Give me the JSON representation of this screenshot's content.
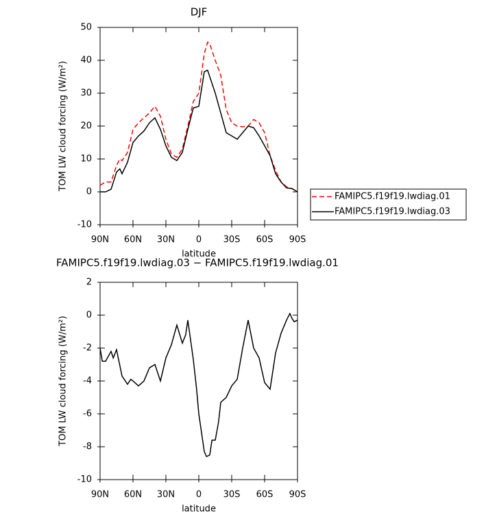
{
  "chart_data": [
    {
      "type": "line",
      "title": "DJF",
      "xlabel": "latitude",
      "ylabel": "TOM LW cloud forcing (W/m²)",
      "x": [
        90,
        85,
        80,
        75,
        72,
        70,
        65,
        60,
        55,
        50,
        45,
        40,
        35,
        30,
        25,
        20,
        15,
        10,
        5,
        0,
        -5,
        -8,
        -10,
        -15,
        -20,
        -25,
        -30,
        -35,
        -40,
        -45,
        -50,
        -55,
        -60,
        -65,
        -70,
        -75,
        -80,
        -85,
        -90
      ],
      "series": [
        {
          "name": "FAMIPC5.f19f19.lwdiag.01",
          "color": "#ff0000",
          "dash": true,
          "values": [
            2,
            3,
            3,
            8,
            10,
            9.5,
            12,
            19,
            21,
            22.5,
            24,
            26,
            23,
            16,
            11.5,
            10.5,
            13,
            20,
            27.5,
            30,
            42,
            45.5,
            45,
            40,
            35.5,
            25,
            21,
            20,
            19.8,
            20,
            22,
            21,
            18,
            11,
            6.5,
            3,
            1.5,
            1,
            0
          ]
        },
        {
          "name": "FAMIPC5.f19f19.lwdiag.03",
          "color": "#000000",
          "dash": false,
          "values": [
            0,
            0,
            0.8,
            6,
            7,
            5.5,
            9,
            15,
            17,
            18.5,
            21,
            22.5,
            19,
            14,
            10.5,
            9.5,
            12,
            19,
            25.5,
            26,
            36.5,
            37,
            35,
            30,
            24,
            18,
            17,
            16,
            18,
            20,
            19.5,
            17,
            14,
            11,
            5.5,
            3,
            1.2,
            1,
            0
          ]
        }
      ],
      "xlim": [
        90,
        -90
      ],
      "xticks": [
        {
          "value": 90,
          "label": "90N"
        },
        {
          "value": 60,
          "label": "60N"
        },
        {
          "value": 30,
          "label": "30N"
        },
        0,
        {
          "value": -30,
          "label": "30S"
        },
        {
          "value": -60,
          "label": "60S"
        },
        {
          "value": -90,
          "label": "90S"
        }
      ],
      "ylim": [
        -10,
        50
      ],
      "yticks": [
        -10,
        0,
        10,
        20,
        30,
        40,
        50
      ],
      "legend": "right"
    },
    {
      "type": "line",
      "title": "FAMIPC5.f19f19.lwdiag.03 − FAMIPC5.f19f19.lwdiag.01",
      "xlabel": "latitude",
      "ylabel": "TOM LW cloud forcing (W/m²)",
      "x": [
        90,
        88,
        85,
        80,
        78,
        75,
        70,
        65,
        62,
        60,
        55,
        50,
        45,
        40,
        35,
        30,
        25,
        20,
        15,
        12,
        10,
        5,
        2,
        0,
        -5,
        -7,
        -10,
        -12,
        -15,
        -18,
        -20,
        -25,
        -30,
        -35,
        -40,
        -45,
        -50,
        -55,
        -60,
        -65,
        -70,
        -75,
        -80,
        -83,
        -85,
        -87,
        -90
      ],
      "color": "#000000",
      "values": [
        -2,
        -2.8,
        -2.8,
        -2.2,
        -2.6,
        -2.1,
        -3.7,
        -4.2,
        -3.9,
        -4.0,
        -4.3,
        -4.0,
        -3.2,
        -3.0,
        -4.0,
        -2.6,
        -1.8,
        -0.6,
        -1.7,
        -1.2,
        -0.3,
        -2.7,
        -4.5,
        -6,
        -8.3,
        -8.6,
        -8.5,
        -7.6,
        -7.6,
        -6.5,
        -5.3,
        -5,
        -4.3,
        -3.9,
        -2,
        -0.3,
        -2.0,
        -2.6,
        -4.1,
        -4.5,
        -2.3,
        -1.1,
        -0.3,
        0.1,
        -0.2,
        -0.4,
        -0.3
      ],
      "xlim": [
        90,
        -90
      ],
      "xticks": [
        {
          "value": 90,
          "label": "90N"
        },
        {
          "value": 60,
          "label": "60N"
        },
        {
          "value": 30,
          "label": "30N"
        },
        0,
        {
          "value": -30,
          "label": "30S"
        },
        {
          "value": -60,
          "label": "60S"
        },
        {
          "value": -90,
          "label": "90S"
        }
      ],
      "ylim": [
        -10,
        2
      ],
      "yticks": [
        -10,
        -8,
        -6,
        -4,
        -2,
        0,
        2
      ]
    }
  ]
}
